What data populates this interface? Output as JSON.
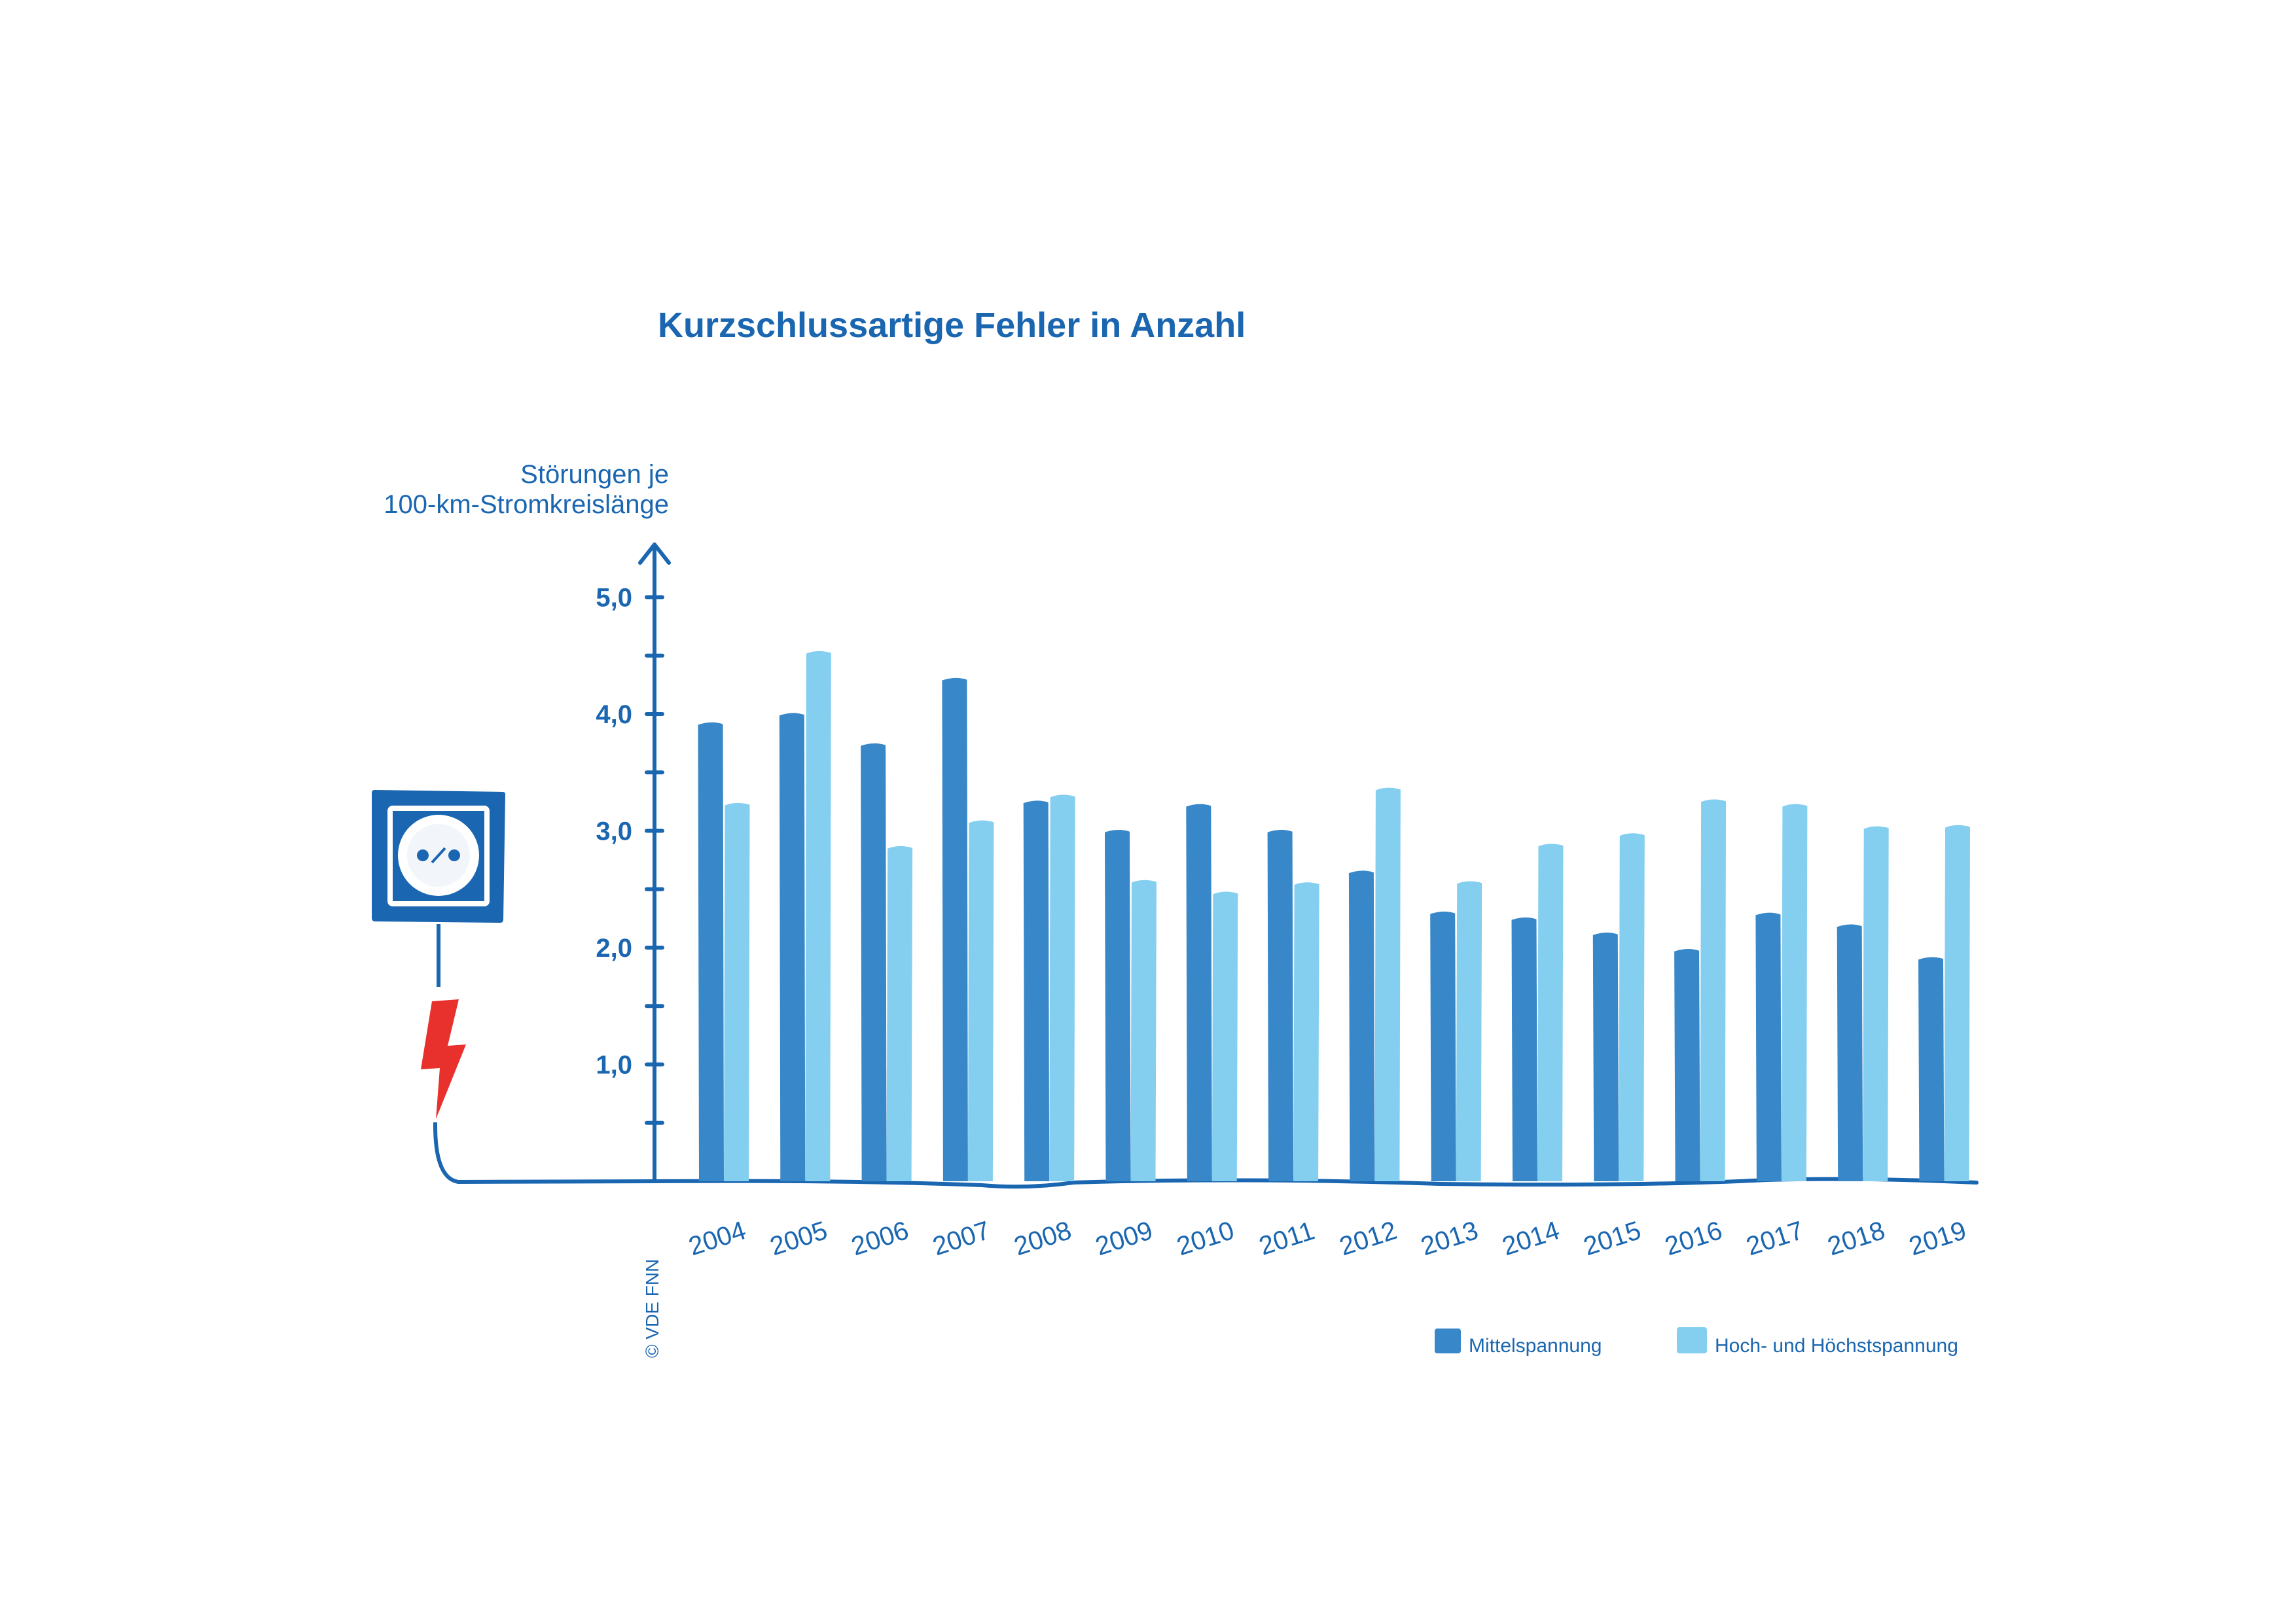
{
  "colors": {
    "text": "#1a66b0",
    "axis": "#1a66b0",
    "series_dark": "#3887c8",
    "series_light": "#84cff0",
    "icon_blue": "#1a66b0",
    "socket_white": "#ffffff",
    "lightning_red": "#e8312c"
  },
  "icons": [
    "power-socket-icon",
    "lightning-bolt-icon"
  ],
  "copyright": "© VDE FNN",
  "chart_data": {
    "type": "bar",
    "title": "Kurzschlussartige Fehler in Anzahl",
    "ylabel_line1": "Störungen je",
    "ylabel_line2": "100-km-Stromkreislänge",
    "xlabel": "",
    "ylim": [
      0,
      5.5
    ],
    "y_ticks": [
      {
        "value": 1.0,
        "label": "1,0"
      },
      {
        "value": 2.0,
        "label": "2,0"
      },
      {
        "value": 3.0,
        "label": "3,0"
      },
      {
        "value": 4.0,
        "label": "4,0"
      },
      {
        "value": 5.0,
        "label": "5,0"
      }
    ],
    "y_minor_ticks": [
      0.5,
      1.5,
      2.5,
      3.5,
      4.5
    ],
    "categories": [
      "2004",
      "2005",
      "2006",
      "2007",
      "2008",
      "2009",
      "2010",
      "2011",
      "2012",
      "2013",
      "2014",
      "2015",
      "2016",
      "2017",
      "2018",
      "2019"
    ],
    "series": [
      {
        "name": "Mittelspannung",
        "color": "#3887c8",
        "values": [
          3.93,
          4.01,
          3.75,
          4.31,
          3.26,
          3.01,
          3.23,
          3.01,
          2.66,
          2.31,
          2.26,
          2.13,
          1.99,
          2.3,
          2.2,
          1.92
        ]
      },
      {
        "name": "Hoch- und Höchstspannung",
        "color": "#84cff0",
        "values": [
          3.24,
          4.54,
          2.87,
          3.09,
          3.31,
          2.58,
          2.48,
          2.56,
          3.37,
          2.57,
          2.89,
          2.98,
          3.27,
          3.23,
          3.04,
          3.05
        ]
      }
    ],
    "legend_position": "bottom-right",
    "grid": false
  }
}
